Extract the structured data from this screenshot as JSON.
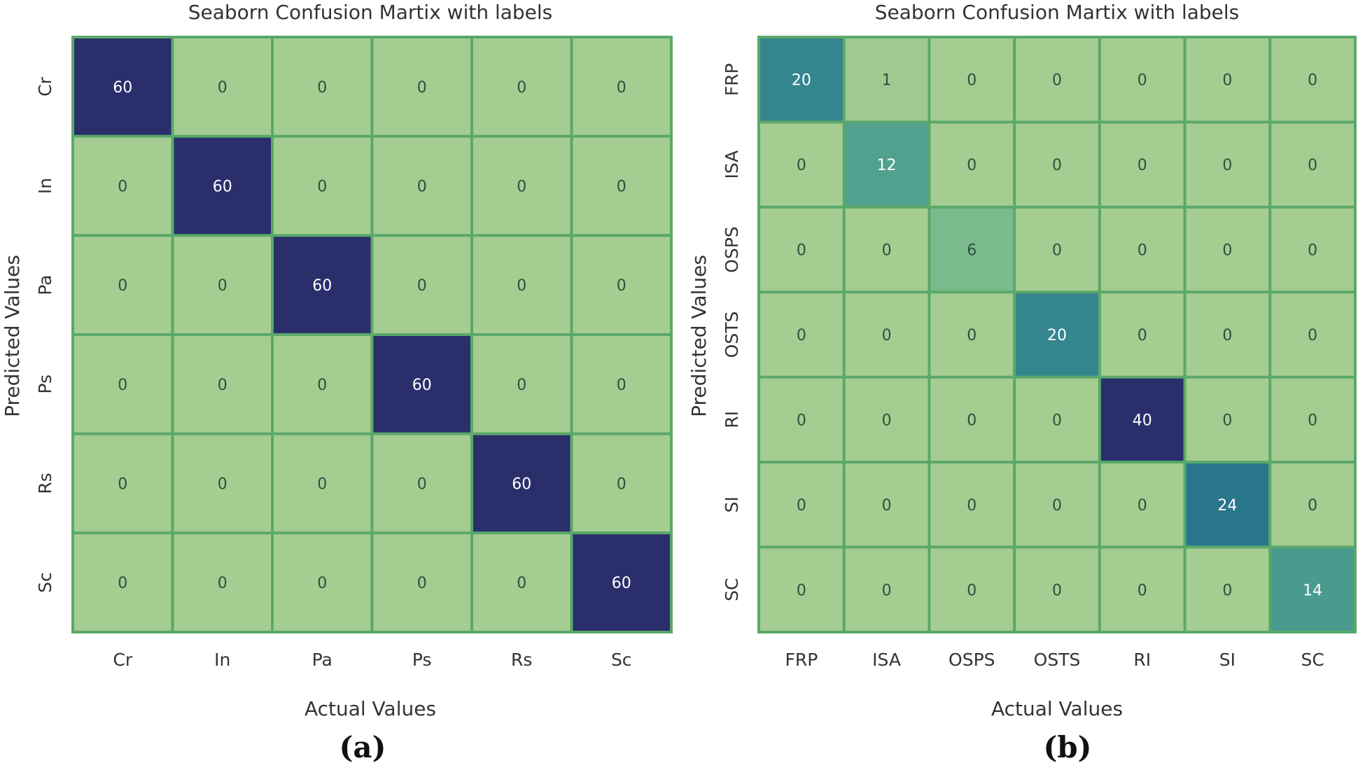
{
  "chart_data": [
    {
      "type": "heatmap",
      "panel_label": "(a)",
      "title": "Seaborn Confusion Martix with labels",
      "xlabel": "Actual Values",
      "ylabel": "Predicted Values",
      "x_categories": [
        "Cr",
        "In",
        "Pa",
        "Ps",
        "Rs",
        "Sc"
      ],
      "y_categories": [
        "Cr",
        "In",
        "Pa",
        "Ps",
        "Rs",
        "Sc"
      ],
      "values": [
        [
          60,
          0,
          0,
          0,
          0,
          0
        ],
        [
          0,
          60,
          0,
          0,
          0,
          0
        ],
        [
          0,
          0,
          60,
          0,
          0,
          0
        ],
        [
          0,
          0,
          0,
          60,
          0,
          0
        ],
        [
          0,
          0,
          0,
          0,
          60,
          0
        ],
        [
          0,
          0,
          0,
          0,
          0,
          60
        ]
      ],
      "colormap": "crest",
      "vmax": 60
    },
    {
      "type": "heatmap",
      "panel_label": "(b)",
      "title": "Seaborn Confusion Martix with labels",
      "xlabel": "Actual Values",
      "ylabel": "Predicted Values",
      "x_categories": [
        "FRP",
        "ISA",
        "OSPS",
        "OSTS",
        "RI",
        "SI",
        "SC"
      ],
      "y_categories": [
        "FRP",
        "ISA",
        "OSPS",
        "OSTS",
        "RI",
        "SI",
        "SC"
      ],
      "values": [
        [
          20,
          1,
          0,
          0,
          0,
          0,
          0
        ],
        [
          0,
          12,
          0,
          0,
          0,
          0,
          0
        ],
        [
          0,
          0,
          6,
          0,
          0,
          0,
          0
        ],
        [
          0,
          0,
          0,
          20,
          0,
          0,
          0
        ],
        [
          0,
          0,
          0,
          0,
          40,
          0,
          0
        ],
        [
          0,
          0,
          0,
          0,
          0,
          24,
          0
        ],
        [
          0,
          0,
          0,
          0,
          0,
          0,
          14
        ]
      ],
      "colormap": "crest",
      "vmax": 40
    }
  ],
  "colors": {
    "cell_border": "#5aa86a",
    "colormap_stops": [
      "#a5cd91",
      "#7cbc8e",
      "#53a38f",
      "#3e8f8f",
      "#2b7a8c",
      "#236590",
      "#293a7a",
      "#2a2f6b"
    ],
    "text_dark": "#2f4f3f",
    "text_light": "#ffffff"
  }
}
